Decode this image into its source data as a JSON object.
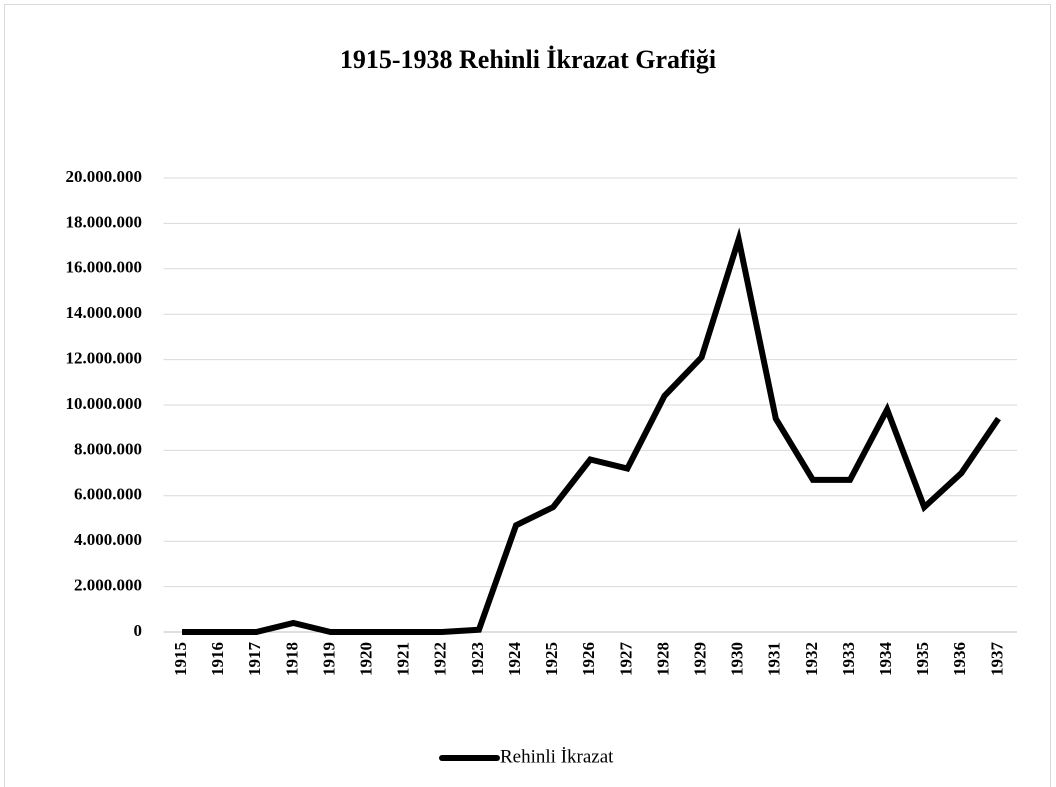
{
  "chart_data": {
    "type": "line",
    "title": "1915-1938 Rehinli İkrazat Grafiği",
    "categories": [
      "1915",
      "1916",
      "1917",
      "1918",
      "1919",
      "1920",
      "1921",
      "1922",
      "1923",
      "1924",
      "1925",
      "1926",
      "1927",
      "1928",
      "1929",
      "1930",
      "1931",
      "1932",
      "1933",
      "1934",
      "1935",
      "1936",
      "1937"
    ],
    "series": [
      {
        "name": "Rehinli İkrazat",
        "color": "#000000",
        "values": [
          0,
          0,
          0,
          400000,
          0,
          0,
          0,
          0,
          100000,
          4700000,
          5500000,
          7600000,
          7200000,
          10400000,
          12100000,
          17300000,
          9400000,
          6700000,
          6700000,
          9800000,
          5500000,
          7000000,
          9400000
        ]
      }
    ],
    "ylim": [
      0,
      20000000
    ],
    "yticks": [
      0,
      {
        "value": 2000000,
        "label": "2.000.000"
      },
      {
        "value": 4000000,
        "label": "4.000.000"
      },
      {
        "value": 6000000,
        "label": "6.000.000"
      },
      {
        "value": 8000000,
        "label": "8.000.000"
      },
      {
        "value": 10000000,
        "label": "10.000.000"
      },
      {
        "value": 12000000,
        "label": "12.000.000"
      },
      {
        "value": 14000000,
        "label": "14.000.000"
      },
      {
        "value": 16000000,
        "label": "16.000.000"
      },
      {
        "value": 18000000,
        "label": "18.000.000"
      },
      {
        "value": 20000000,
        "label": "20.000.000"
      }
    ],
    "grid": true,
    "legend": "bottom"
  }
}
